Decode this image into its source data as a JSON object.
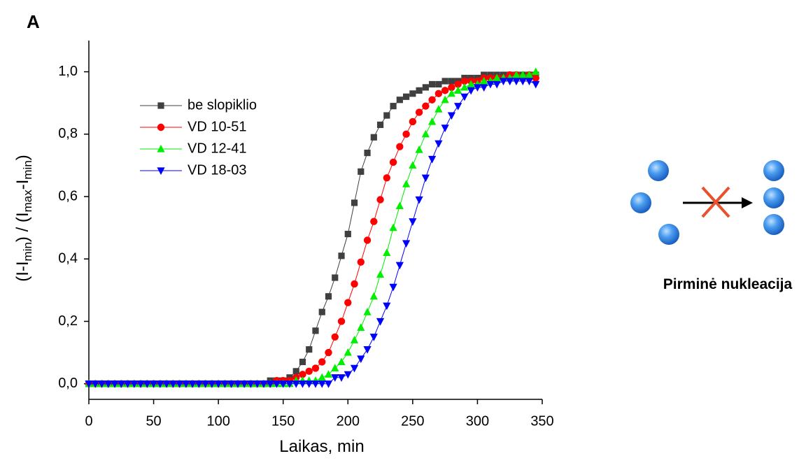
{
  "panel_label": "A",
  "chart_data": {
    "type": "line",
    "x_label": "Laikas, min",
    "y_label": [
      "(I-I",
      "min",
      ") / (I",
      "max",
      "-I",
      "min",
      ")"
    ],
    "x": [
      0,
      5,
      10,
      15,
      20,
      25,
      30,
      35,
      40,
      45,
      50,
      55,
      60,
      65,
      70,
      75,
      80,
      85,
      90,
      95,
      100,
      105,
      110,
      115,
      120,
      125,
      130,
      135,
      140,
      145,
      150,
      155,
      160,
      165,
      170,
      175,
      180,
      185,
      190,
      195,
      200,
      205,
      210,
      215,
      220,
      225,
      230,
      235,
      240,
      245,
      250,
      255,
      260,
      265,
      270,
      275,
      280,
      285,
      290,
      295,
      300,
      305,
      310,
      315,
      320,
      325,
      330,
      335,
      340,
      345
    ],
    "xlim": [
      0,
      350
    ],
    "xticks": [
      0,
      50,
      100,
      150,
      200,
      250,
      300,
      350
    ],
    "ylim": [
      -0.05,
      1.1
    ],
    "yticks": [
      {
        "value": 0,
        "label": "0,0"
      },
      {
        "value": 0.2,
        "label": "0,2"
      },
      {
        "value": 0.4,
        "label": "0,4"
      },
      {
        "value": 0.6,
        "label": "0,6"
      },
      {
        "value": 0.8,
        "label": "0,8"
      },
      {
        "value": 1.0,
        "label": "1,0"
      }
    ],
    "legend": "upper left",
    "series": [
      {
        "name": "be slopiklio",
        "color": "#404040",
        "marker": "square",
        "values": [
          0,
          0,
          0,
          0,
          0,
          0,
          0,
          0,
          0,
          0,
          0,
          0,
          0,
          0,
          0,
          0,
          0,
          0,
          0,
          0,
          0,
          0,
          0,
          0,
          0,
          0,
          0,
          0,
          0.01,
          0.01,
          0.01,
          0.02,
          0.04,
          0.07,
          0.11,
          0.17,
          0.23,
          0.28,
          0.34,
          0.41,
          0.48,
          0.58,
          0.68,
          0.74,
          0.79,
          0.83,
          0.86,
          0.89,
          0.91,
          0.92,
          0.93,
          0.94,
          0.95,
          0.96,
          0.96,
          0.97,
          0.97,
          0.97,
          0.98,
          0.98,
          0.98,
          0.99,
          0.99,
          0.99,
          0.99,
          0.99,
          0.99,
          0.99,
          0.99,
          0.99
        ]
      },
      {
        "name": "VD 10-51",
        "color": "#ff0000",
        "marker": "circle",
        "values": [
          0,
          0,
          0,
          0,
          0,
          0,
          0,
          0,
          0,
          0,
          0,
          0,
          0,
          0,
          0,
          0,
          0,
          0,
          0,
          0,
          0,
          0,
          0,
          0,
          0,
          0,
          0,
          0,
          0,
          0.01,
          0.01,
          0.01,
          0.02,
          0.03,
          0.04,
          0.05,
          0.07,
          0.1,
          0.15,
          0.2,
          0.26,
          0.32,
          0.39,
          0.46,
          0.52,
          0.59,
          0.66,
          0.71,
          0.76,
          0.8,
          0.84,
          0.87,
          0.89,
          0.91,
          0.93,
          0.94,
          0.95,
          0.96,
          0.97,
          0.97,
          0.97,
          0.98,
          0.98,
          0.98,
          0.98,
          0.99,
          0.99,
          0.98,
          0.99,
          0.98
        ]
      },
      {
        "name": "VD 12-41",
        "color": "#00ee00",
        "marker": "triangle-up",
        "values": [
          0,
          0,
          0,
          0,
          0,
          0,
          0,
          0,
          0,
          0,
          0,
          0,
          0,
          0,
          0,
          0,
          0,
          0,
          0,
          0,
          0,
          0,
          0,
          0,
          0,
          0,
          0,
          0,
          0,
          0,
          0,
          0,
          0.01,
          0.01,
          0.01,
          0.01,
          0.02,
          0.03,
          0.05,
          0.07,
          0.1,
          0.14,
          0.18,
          0.23,
          0.28,
          0.35,
          0.42,
          0.5,
          0.57,
          0.64,
          0.7,
          0.75,
          0.8,
          0.84,
          0.88,
          0.91,
          0.93,
          0.94,
          0.95,
          0.96,
          0.96,
          0.97,
          0.97,
          0.98,
          0.98,
          0.98,
          0.99,
          0.99,
          0.99,
          1.0
        ]
      },
      {
        "name": "VD 18-03",
        "color": "#0000ff",
        "marker": "triangle-down",
        "values": [
          0,
          0,
          0,
          0,
          0,
          0,
          0,
          0,
          0,
          0,
          0,
          0,
          0,
          0,
          0,
          0,
          0,
          0,
          0,
          0,
          0,
          0,
          0,
          0,
          0,
          0,
          0,
          0,
          0,
          0,
          0,
          0,
          0,
          0,
          0,
          0,
          0,
          0,
          0.02,
          0.02,
          0.03,
          0.05,
          0.08,
          0.11,
          0.15,
          0.2,
          0.25,
          0.31,
          0.38,
          0.45,
          0.52,
          0.59,
          0.66,
          0.72,
          0.77,
          0.82,
          0.86,
          0.89,
          0.92,
          0.94,
          0.95,
          0.95,
          0.96,
          0.96,
          0.97,
          0.97,
          0.97,
          0.97,
          0.97,
          0.96
        ]
      }
    ]
  },
  "diagram": {
    "caption": "Pirminė nukleacija"
  }
}
